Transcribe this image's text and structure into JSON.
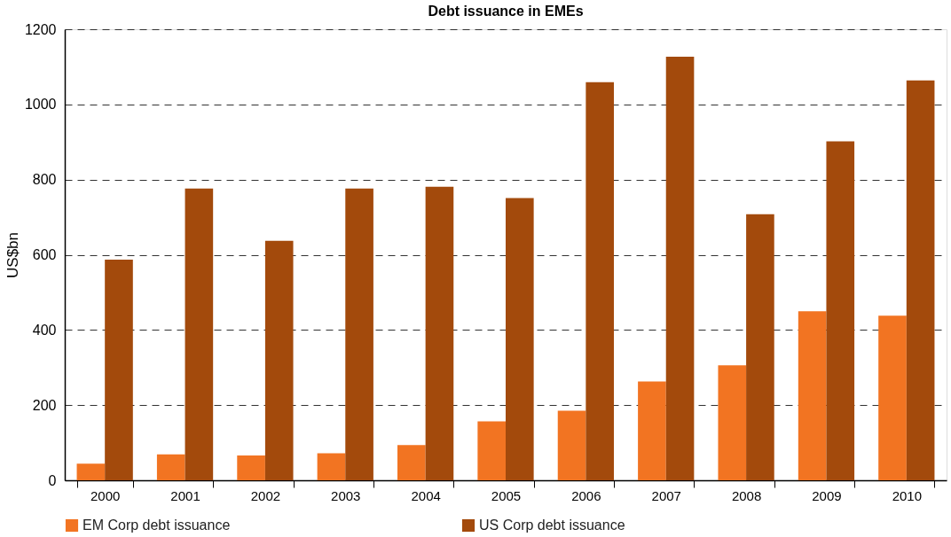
{
  "chart_data": {
    "type": "bar",
    "title": "Debt issuance in EMEs",
    "ylabel": "US$bn",
    "categories": [
      "2000",
      "2001",
      "2002",
      "2003",
      "2004",
      "2005",
      "2006",
      "2007",
      "2008",
      "2009",
      "2010"
    ],
    "series": [
      {
        "name": "EM Corp debt issuance",
        "color": "#f27422",
        "values": [
          44,
          69,
          66,
          72,
          94,
          157,
          185,
          263,
          306,
          450,
          438
        ]
      },
      {
        "name": "US Corp debt issuance",
        "color": "#a34a0c",
        "values": [
          587,
          776,
          637,
          776,
          781,
          751,
          1059,
          1127,
          708,
          902,
          1064
        ]
      }
    ],
    "ylim": [
      0,
      1200
    ],
    "yticks": [
      0,
      200,
      400,
      600,
      800,
      1000,
      1200
    ],
    "grid": "y",
    "line_style": "dashed",
    "legend": "bottom"
  }
}
